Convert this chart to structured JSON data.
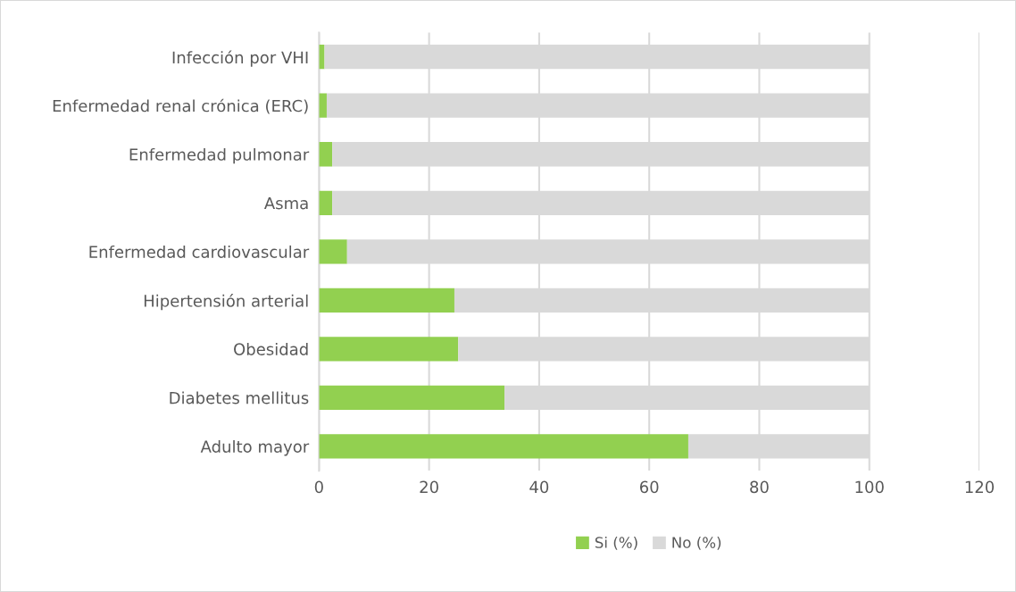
{
  "chart_data": {
    "type": "bar",
    "orientation": "horizontal",
    "stacked": true,
    "categories": [
      "Infección por VHI",
      "Enfermedad renal crónica (ERC)",
      "Enfermedad pulmonar",
      "Asma",
      "Enfermedad cardiovascular",
      "Hipertensión arterial",
      "Obesidad",
      "Diabetes mellitus",
      "Adulto mayor"
    ],
    "series": [
      {
        "name": "Si (%)",
        "color": "#92d050",
        "values": [
          1.0,
          1.4,
          2.4,
          2.4,
          5.1,
          24.6,
          25.3,
          33.7,
          67.1
        ]
      },
      {
        "name": "No (%)",
        "color": "#d9d9d9",
        "values": [
          99.0,
          98.6,
          97.6,
          97.6,
          94.9,
          75.4,
          74.7,
          66.3,
          32.9
        ]
      }
    ],
    "xlim": [
      0,
      120
    ],
    "xticks": [
      0,
      20,
      40,
      60,
      80,
      100,
      120
    ],
    "grid": "x",
    "legend": "bottom"
  }
}
